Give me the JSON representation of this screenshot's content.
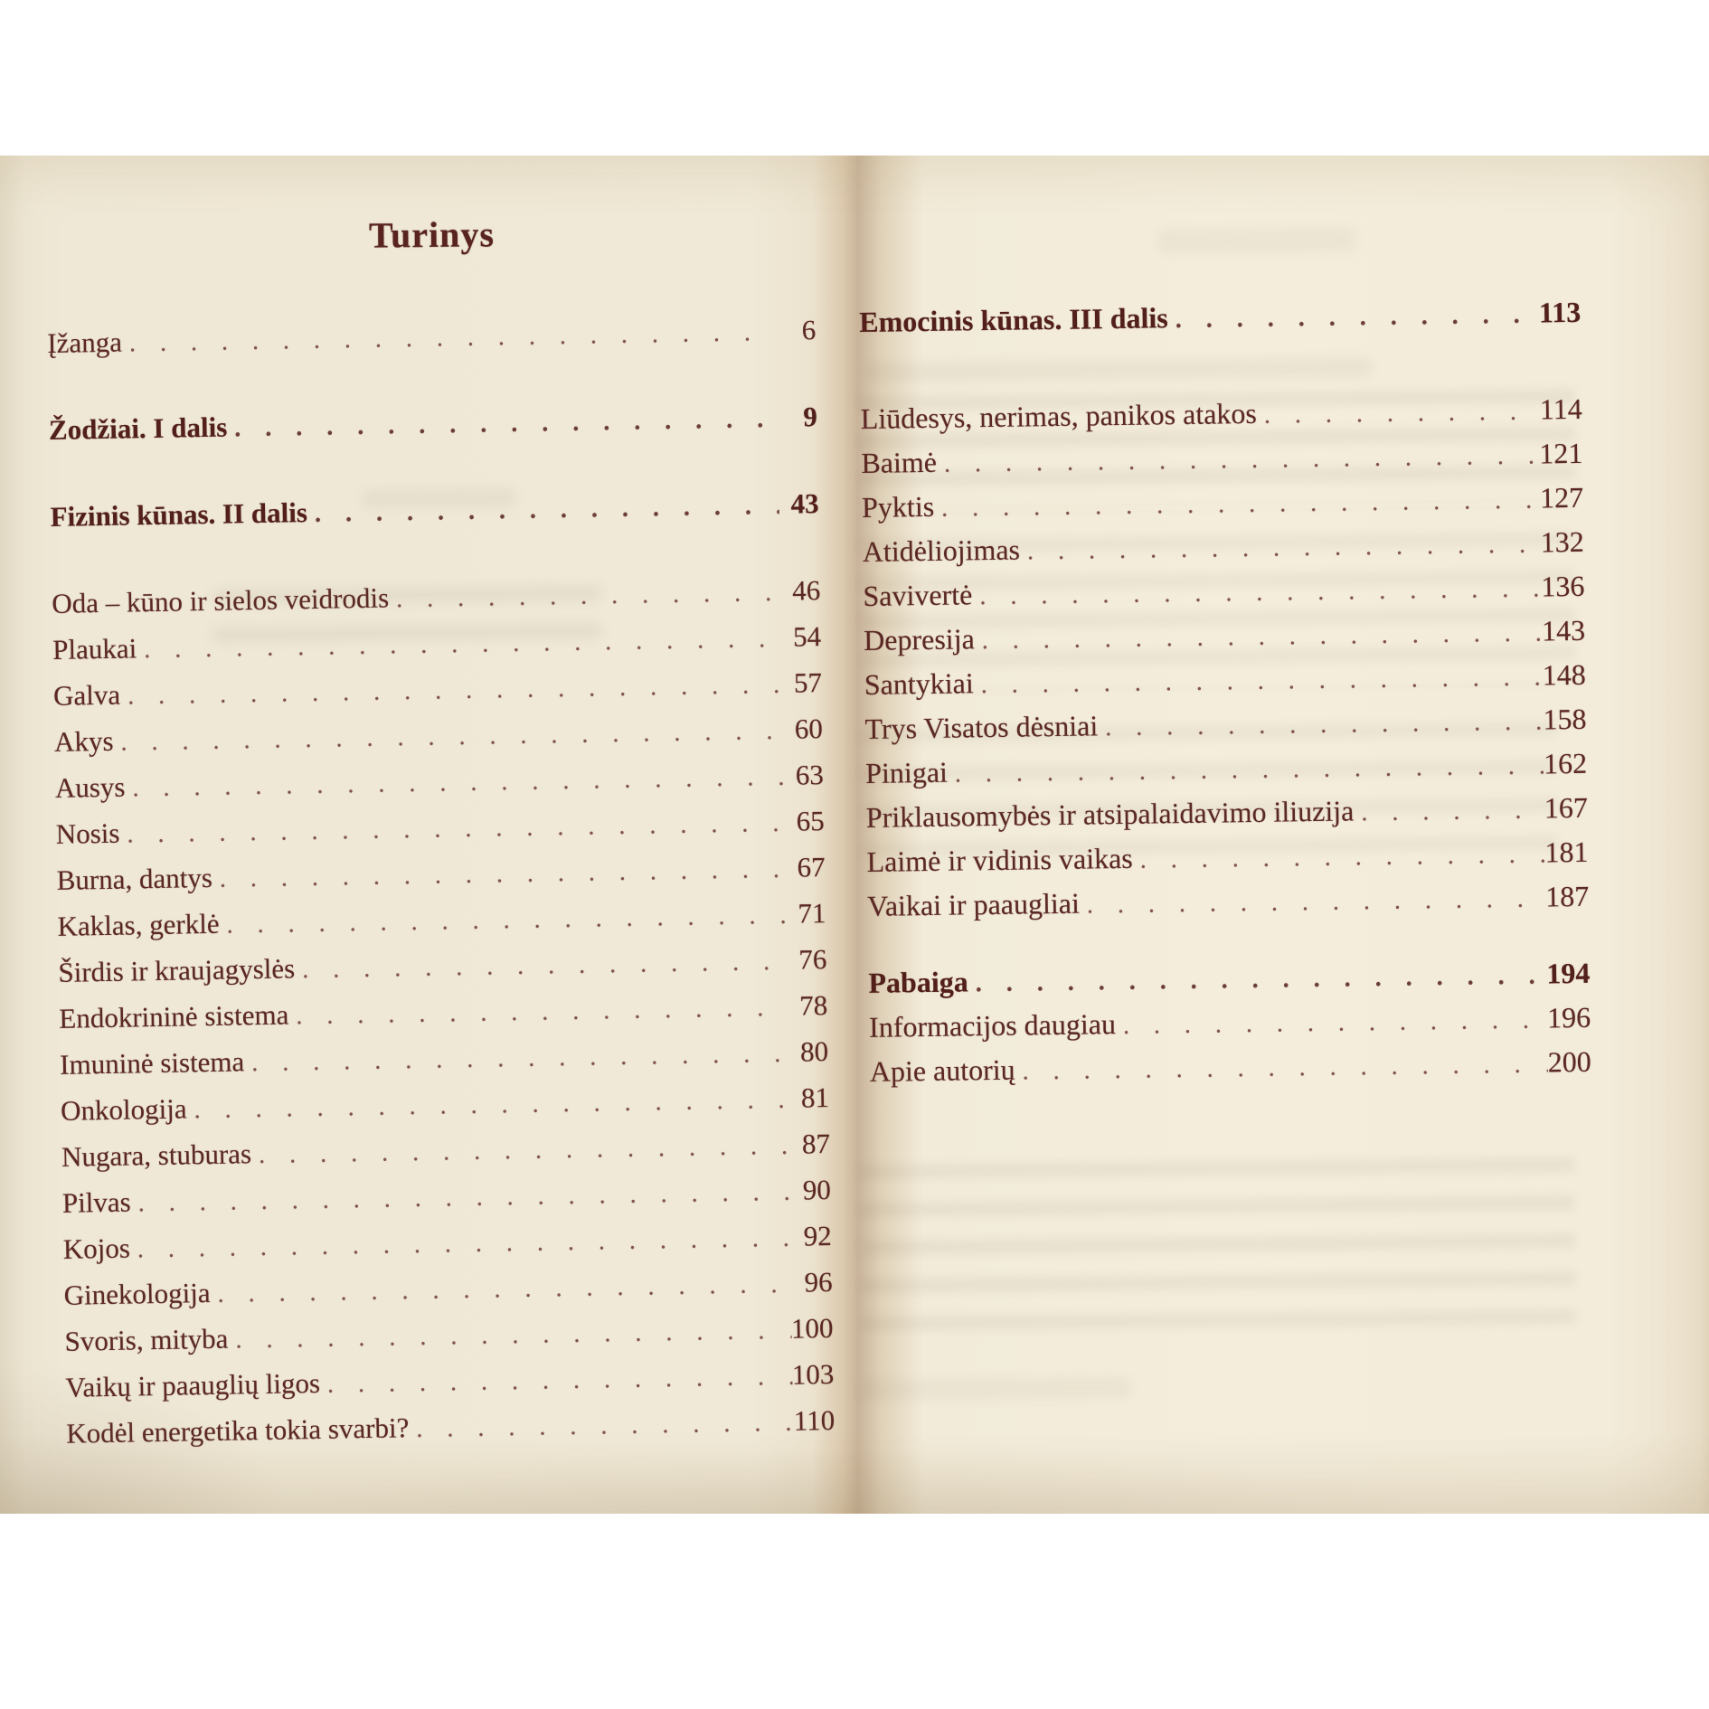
{
  "book": {
    "heading": "Turinys",
    "left_page": {
      "sections": [
        {
          "rows": [
            {
              "label": "Įžanga",
              "page": "6"
            }
          ]
        },
        {
          "rows": [
            {
              "label": "Žodžiai. I dalis",
              "page": "9",
              "bold": true
            }
          ]
        },
        {
          "rows": [
            {
              "label": "Fizinis kūnas. II dalis",
              "page": "43",
              "bold": true
            }
          ]
        },
        {
          "rows": [
            {
              "label": "Oda – kūno ir sielos veidrodis",
              "page": "46"
            },
            {
              "label": "Plaukai",
              "page": "54"
            },
            {
              "label": "Galva",
              "page": "57"
            },
            {
              "label": "Akys",
              "page": "60"
            },
            {
              "label": "Ausys",
              "page": "63"
            },
            {
              "label": "Nosis",
              "page": "65"
            },
            {
              "label": "Burna, dantys",
              "page": "67"
            },
            {
              "label": "Kaklas, gerklė",
              "page": "71"
            },
            {
              "label": "Širdis ir kraujagyslės",
              "page": "76"
            },
            {
              "label": "Endokrininė sistema",
              "page": "78"
            },
            {
              "label": "Imuninė sistema",
              "page": "80"
            },
            {
              "label": "Onkologija",
              "page": "81"
            },
            {
              "label": "Nugara, stuburas",
              "page": "87"
            },
            {
              "label": "Pilvas",
              "page": "90"
            },
            {
              "label": "Kojos",
              "page": "92"
            },
            {
              "label": "Ginekologija",
              "page": "96"
            },
            {
              "label": "Svoris, mityba",
              "page": "100"
            },
            {
              "label": "Vaikų ir paauglių ligos",
              "page": "103"
            },
            {
              "label": "Kodėl energetika tokia svarbi?",
              "page": "110"
            }
          ]
        }
      ]
    },
    "right_page": {
      "sections": [
        {
          "rows": [
            {
              "label": "Emocinis kūnas. III dalis",
              "page": "113",
              "bold": true
            }
          ]
        },
        {
          "rows": [
            {
              "label": "Liūdesys, nerimas, panikos atakos",
              "page": "114"
            },
            {
              "label": "Baimė",
              "page": "121"
            },
            {
              "label": "Pyktis",
              "page": "127"
            },
            {
              "label": "Atidėliojimas",
              "page": "132"
            },
            {
              "label": "Savivertė",
              "page": "136"
            },
            {
              "label": "Depresija",
              "page": "143"
            },
            {
              "label": "Santykiai",
              "page": "148"
            },
            {
              "label": "Trys Visatos dėsniai",
              "page": "158"
            },
            {
              "label": "Pinigai",
              "page": "162"
            },
            {
              "label": "Priklausomybės ir atsipalaidavimo iliuzija",
              "page": "167"
            },
            {
              "label": "Laimė ir vidinis vaikas",
              "page": "181"
            },
            {
              "label": "Vaikai ir paaugliai",
              "page": "187"
            }
          ]
        },
        {
          "rows": [
            {
              "label": "Pabaiga",
              "page": "194",
              "bold": true
            },
            {
              "label": "Informacijos daugiau",
              "page": "196"
            },
            {
              "label": "Apie autorių",
              "page": "200"
            }
          ]
        }
      ]
    },
    "colors": {
      "ink": "#5b2823",
      "paper_left": "#f0e9d7",
      "paper_right": "#f4eddc",
      "gutter_shadow": "#c9b49a"
    }
  }
}
